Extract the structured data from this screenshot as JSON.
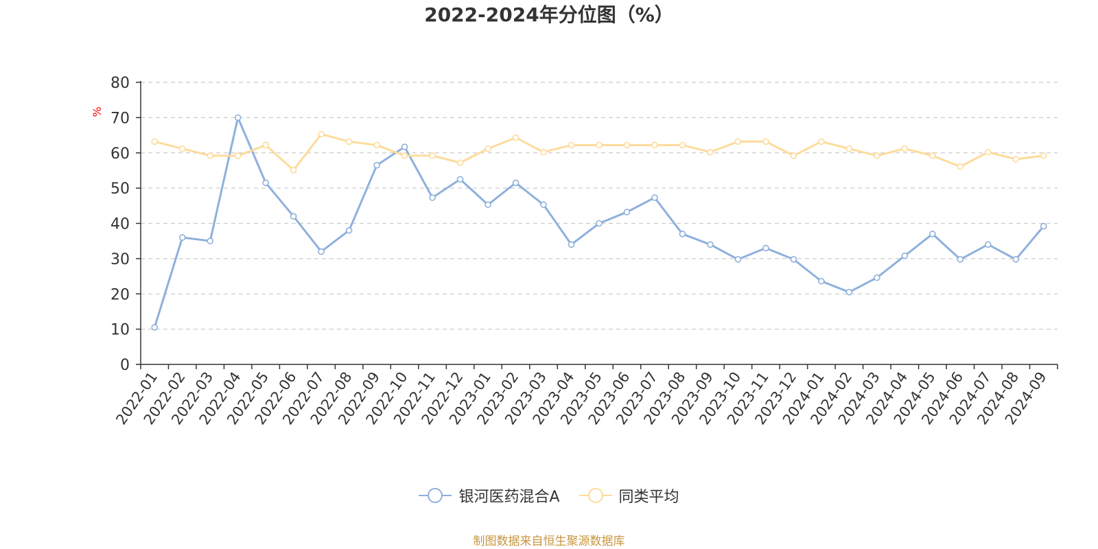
{
  "chart_data": {
    "type": "line",
    "title": "2022-2024年分位图（%）",
    "ylabel": "%",
    "xlabel": "",
    "ylim": [
      0,
      80
    ],
    "yticks": [
      0,
      10,
      20,
      30,
      40,
      50,
      60,
      70,
      80
    ],
    "grid": true,
    "legend_position": "bottom-center",
    "categories": [
      "2022-01",
      "2022-02",
      "2022-03",
      "2022-04",
      "2022-05",
      "2022-06",
      "2022-07",
      "2022-08",
      "2022-09",
      "2022-10",
      "2022-11",
      "2022-12",
      "2023-01",
      "2023-02",
      "2023-03",
      "2023-04",
      "2023-05",
      "2023-06",
      "2023-07",
      "2023-08",
      "2023-09",
      "2023-10",
      "2023-11",
      "2023-12",
      "2024-01",
      "2024-02",
      "2024-03",
      "2024-04",
      "2024-05",
      "2024-06",
      "2024-07",
      "2024-08",
      "2024-09"
    ],
    "series": [
      {
        "name": "银河医药混合A",
        "color": "#8eb0dc",
        "values": [
          10.5,
          36,
          35,
          70,
          51.5,
          42,
          32,
          38,
          56.5,
          61.7,
          47.3,
          52.5,
          45.3,
          51.5,
          45.3,
          34,
          40,
          43.2,
          47.3,
          37,
          34,
          29.8,
          33,
          29.8,
          23.6,
          20.5,
          24.6,
          30.8,
          37,
          29.8,
          34,
          29.8,
          39.2
        ]
      },
      {
        "name": "同类平均",
        "color": "#fddb9b",
        "values": [
          63.2,
          61.2,
          59.2,
          59.2,
          62.2,
          55.1,
          65.3,
          63.2,
          62.2,
          59.2,
          59.2,
          57.2,
          61.2,
          64.3,
          60.2,
          62.2,
          62.2,
          62.2,
          62.2,
          62.2,
          60.2,
          63.2,
          63.2,
          59.2,
          63.2,
          61.2,
          59.2,
          61.2,
          59.2,
          56.1,
          60.2,
          58.2,
          59.2
        ]
      }
    ]
  },
  "source_text": "制图数据来自恒生聚源数据库"
}
